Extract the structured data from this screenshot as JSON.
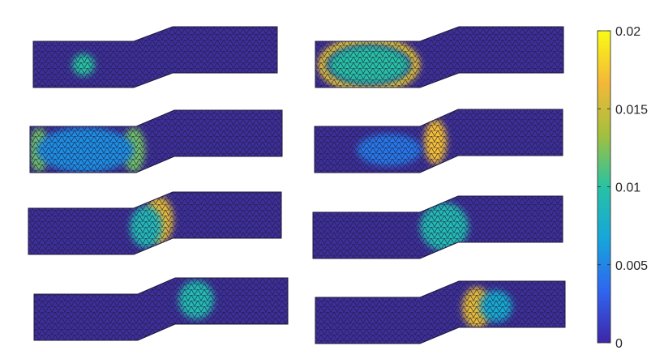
{
  "figure": {
    "panel_count": 8,
    "field_colormap": "parula",
    "mesh": "triangular",
    "background_color": "#3d2f9a",
    "edge_color": "#1f1a3a"
  },
  "colorbar": {
    "min": 0,
    "max": 0.02,
    "ticks": [
      "0.02",
      "0.015",
      "0.01",
      "0.005",
      "0"
    ],
    "colors": [
      "#3e26a8",
      "#2f66f0",
      "#16a6db",
      "#28c2a3",
      "#a3c03d",
      "#f4b838",
      "#f9fb15"
    ]
  },
  "panels": [
    {
      "id": "p1",
      "peak_value": 0.01,
      "peak_location": "left segment"
    },
    {
      "id": "p2",
      "peak_value": 0.018,
      "peak_location": "left segment ring"
    },
    {
      "id": "p3",
      "peak_value": 0.012,
      "peak_location": "left segment ends"
    },
    {
      "id": "p4",
      "peak_value": 0.017,
      "peak_location": "ramp"
    },
    {
      "id": "p5",
      "peak_value": 0.016,
      "peak_location": "ramp"
    },
    {
      "id": "p6",
      "peak_value": 0.009,
      "peak_location": "ramp top"
    },
    {
      "id": "p7",
      "peak_value": 0.009,
      "peak_location": "right segment"
    },
    {
      "id": "p8",
      "peak_value": 0.016,
      "peak_location": "right segment"
    }
  ]
}
